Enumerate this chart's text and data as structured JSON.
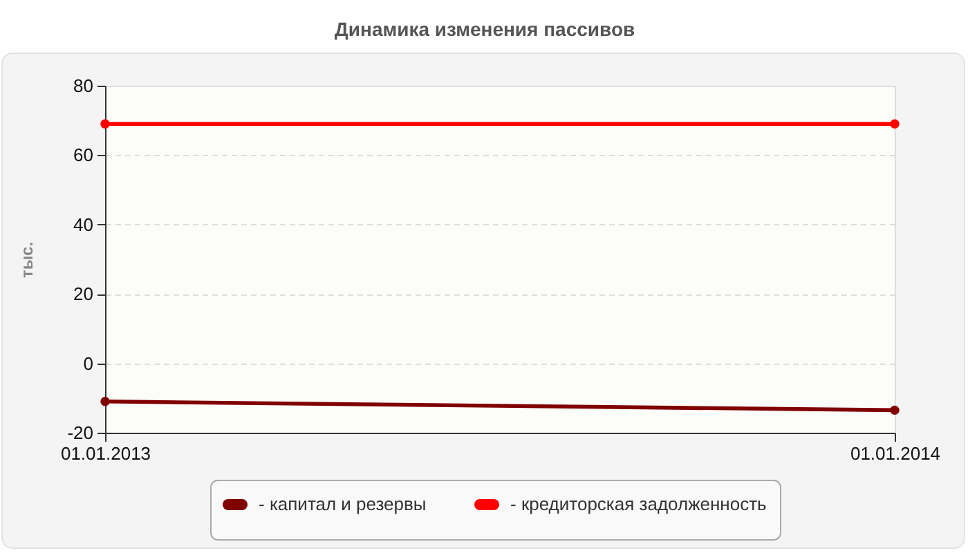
{
  "chart_data": {
    "type": "line",
    "title": "Динамика изменения пассивов",
    "ylabel": "тыс.",
    "x": [
      "2013-01-01",
      "2014-01-01"
    ],
    "xlim": [
      "2013-01-01",
      "2014-01-01"
    ],
    "xticks": [
      {
        "value": "2013-01-01",
        "label": "01.01.2013"
      },
      {
        "value": "2014-01-01",
        "label": "01.01.2014"
      }
    ],
    "ylim": [
      -20,
      80
    ],
    "yticks": [
      -20,
      0,
      20,
      40,
      60,
      80
    ],
    "grid": "y",
    "legend": "bottom",
    "marker": "circle",
    "line_style": "solid",
    "series": [
      {
        "name": "- капитал и резервы",
        "color": "#800000",
        "values": [
          -11,
          -13.5
        ]
      },
      {
        "name": "- кредиторская задолженность",
        "color": "#ff0000",
        "values": [
          69,
          69
        ]
      }
    ]
  }
}
